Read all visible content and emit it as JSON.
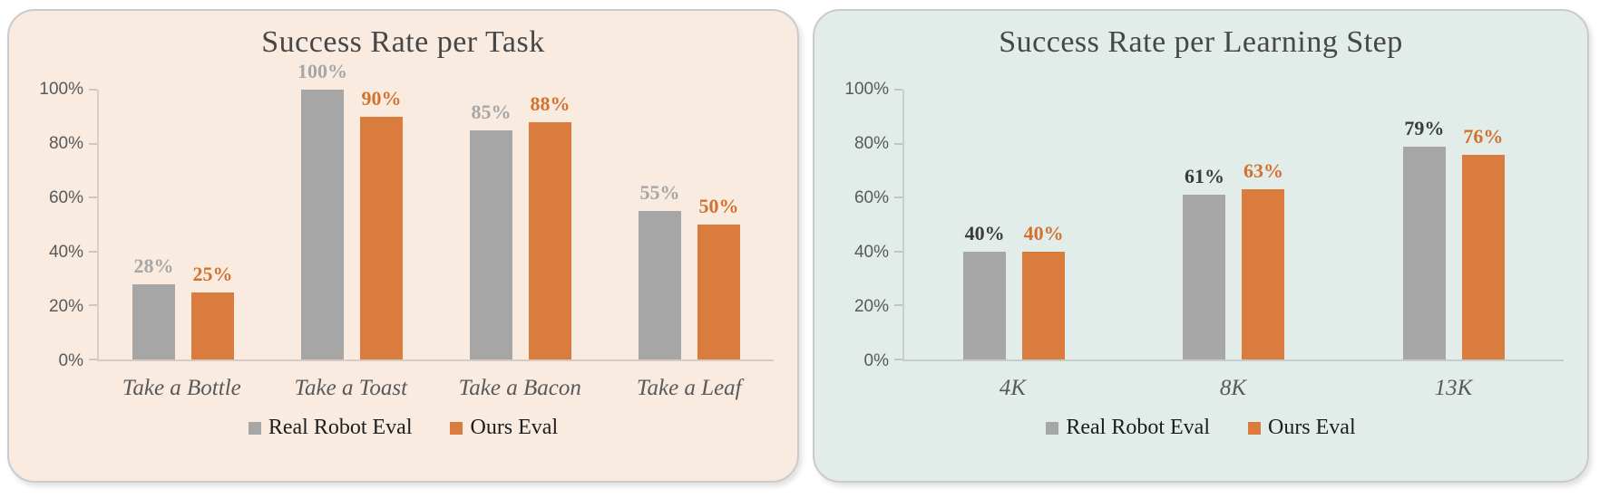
{
  "page": {
    "background": "#FFFFFF"
  },
  "chart_data": [
    {
      "type": "bar",
      "title": "Success Rate per Task",
      "categories": [
        "Take a Bottle",
        "Take a Toast",
        "Take a Bacon",
        "Take a Leaf"
      ],
      "series": [
        {
          "name": "Real Robot Eval",
          "values": [
            28,
            100,
            85,
            55
          ],
          "color": "#A6A6A6",
          "label_color": "#A6A6A6"
        },
        {
          "name": "Ours Eval",
          "values": [
            25,
            90,
            88,
            50
          ],
          "color": "#D97C3D",
          "label_color": "#D2722F"
        }
      ],
      "value_suffix": "%",
      "ylim": [
        0,
        100
      ],
      "ytick_step": 20,
      "ytick_suffix": "%",
      "grid": false,
      "legend_position": "bottom",
      "panel_bg": "#FAEBE1"
    },
    {
      "type": "bar",
      "title": "Success Rate per Learning Step",
      "categories": [
        "4K",
        "8K",
        "13K"
      ],
      "series": [
        {
          "name": "Real Robot Eval",
          "values": [
            40,
            61,
            79
          ],
          "color": "#A6A6A6",
          "label_color": "#3B3B3B"
        },
        {
          "name": "Ours Eval",
          "values": [
            40,
            63,
            76
          ],
          "color": "#D97C3D",
          "label_color": "#D2722F"
        }
      ],
      "value_suffix": "%",
      "ylim": [
        0,
        100
      ],
      "ytick_step": 20,
      "ytick_suffix": "%",
      "grid": false,
      "legend_position": "bottom",
      "panel_bg": "#E2ECE9"
    }
  ]
}
